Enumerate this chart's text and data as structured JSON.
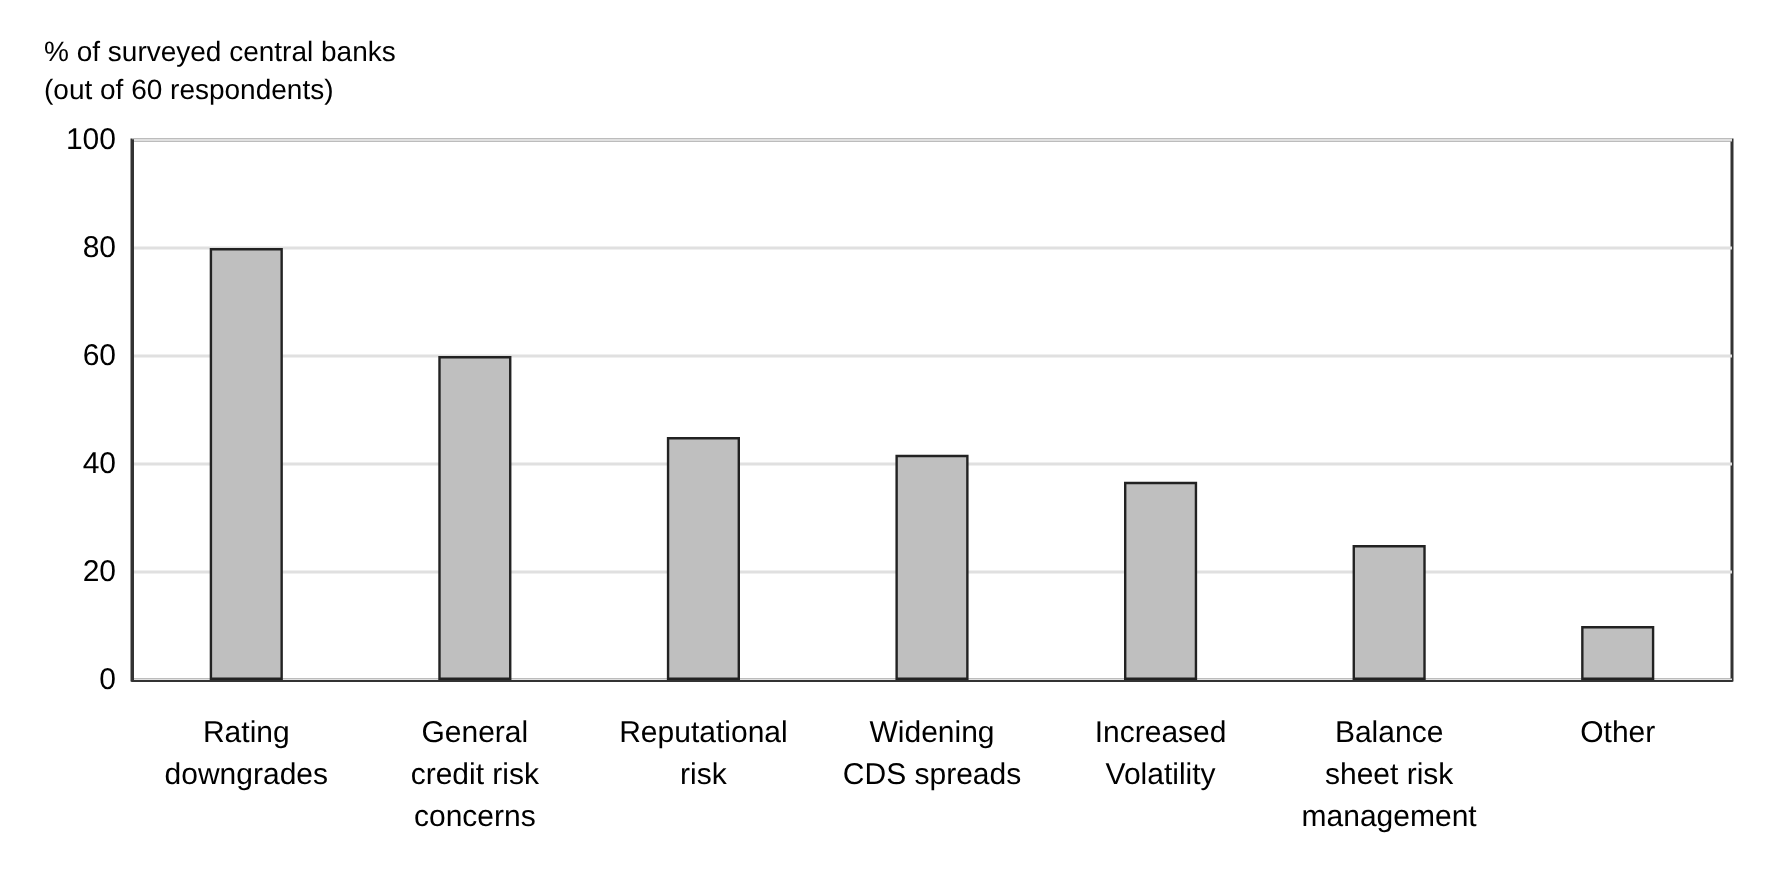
{
  "chart_data": {
    "type": "bar",
    "ylabel": "% of surveyed central banks\n(out of 60 respondents)",
    "categories": [
      "Rating\ndowngrades",
      "General\ncredit risk\nconcerns",
      "Reputational\nrisk",
      "Widening\nCDS spreads",
      "Increased\nVolatility",
      "Balance\nsheet risk\nmanagement",
      "Other"
    ],
    "values": [
      80,
      60,
      45,
      41.7,
      36.7,
      25,
      10
    ],
    "color": "#bfbfbf",
    "ylim": [
      0,
      100
    ],
    "yticks": [
      0,
      20,
      40,
      60,
      80,
      100
    ],
    "grid": "y"
  }
}
